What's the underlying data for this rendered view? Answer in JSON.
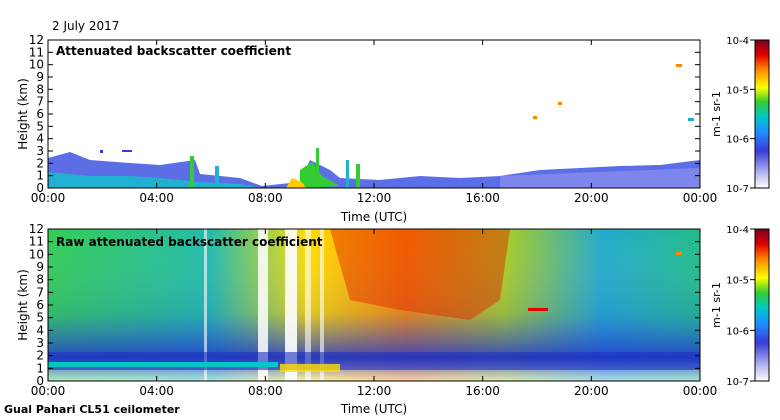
{
  "date_label": "2 July 2017",
  "footer_label": "Gual Pahari CL51 ceilometer",
  "chart_data": [
    {
      "type": "heatmap",
      "title": "Attenuated backscatter coefficient",
      "xlabel": "Time (UTC)",
      "ylabel": "Height (km)",
      "xticks": [
        "00:00",
        "04:00",
        "08:00",
        "12:00",
        "16:00",
        "20:00",
        "00:00"
      ],
      "yticks": [
        0,
        1,
        2,
        3,
        4,
        5,
        6,
        7,
        8,
        9,
        10,
        11,
        12
      ],
      "ylim": [
        0,
        12
      ],
      "colorbar": {
        "label": "m-1 sr-1",
        "ticks": [
          "10-7",
          "10-6",
          "10-5",
          "10-4"
        ],
        "scale": "log",
        "range": [
          1e-07,
          0.0001
        ]
      }
    },
    {
      "type": "heatmap",
      "title": "Raw attenuated backscatter coefficient",
      "xlabel": "Time (UTC)",
      "ylabel": "Height (km)",
      "xticks": [
        "00:00",
        "04:00",
        "08:00",
        "12:00",
        "16:00",
        "20:00",
        "00:00"
      ],
      "yticks": [
        0,
        1,
        2,
        3,
        4,
        5,
        6,
        7,
        8,
        9,
        10,
        11,
        12
      ],
      "ylim": [
        0,
        12
      ],
      "colorbar": {
        "label": "m-1 sr-1",
        "ticks": [
          "10-7",
          "10-6",
          "10-5",
          "10-4"
        ],
        "scale": "log",
        "range": [
          1e-07,
          0.0001
        ]
      }
    }
  ],
  "colors": {
    "colormap": [
      "#ffffff",
      "#b7b7f0",
      "#3b3bd8",
      "#1e90ff",
      "#00c8c8",
      "#33cc33",
      "#ffff00",
      "#ff8800",
      "#e00000",
      "#780020"
    ]
  }
}
